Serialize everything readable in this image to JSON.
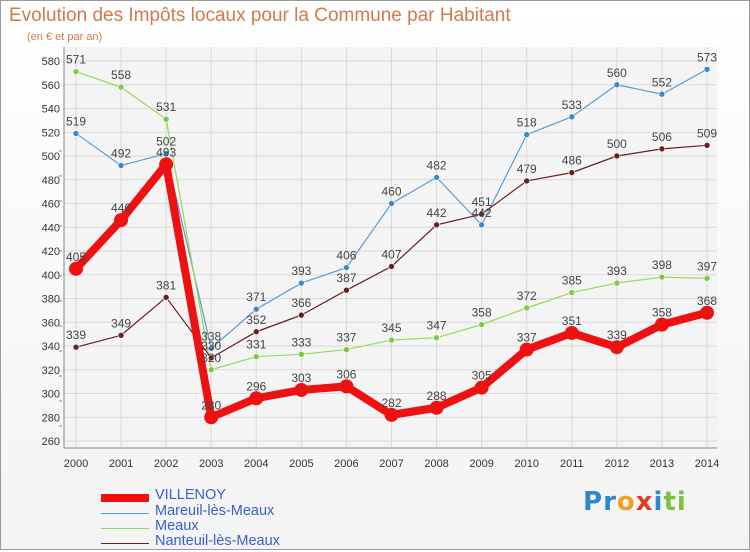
{
  "chart_data": {
    "type": "line",
    "title": "Evolution des Impôts locaux pour la Commune par Habitant",
    "subtitle": "(en € et par an)",
    "x": [
      "2000",
      "2001",
      "2002",
      "2003",
      "2004",
      "2005",
      "2006",
      "2007",
      "2008",
      "2009",
      "2010",
      "2011",
      "2012",
      "2013",
      "2014"
    ],
    "ylim": [
      260,
      580
    ],
    "yticks": [
      260,
      280,
      300,
      320,
      340,
      360,
      380,
      400,
      420,
      440,
      460,
      480,
      500,
      520,
      540,
      560,
      580
    ],
    "grid": true,
    "series": [
      {
        "name": "VILLENOY",
        "color": "#ee1111",
        "values": [
          405,
          446,
          493,
          280,
          296,
          303,
          306,
          282,
          288,
          305,
          337,
          351,
          339,
          358,
          368
        ]
      },
      {
        "name": "Mareuil-lès-Meaux",
        "color": "#5a9bd5",
        "values": [
          519,
          492,
          502,
          338,
          371,
          393,
          406,
          460,
          482,
          442,
          518,
          533,
          560,
          552,
          573
        ]
      },
      {
        "name": "Meaux",
        "color": "#98d65a",
        "values": [
          571,
          558,
          531,
          320,
          331,
          333,
          337,
          345,
          347,
          358,
          372,
          385,
          393,
          398,
          397
        ]
      },
      {
        "name": "Nanteuil-lès-Meaux",
        "color": "#6b2020",
        "values": [
          339,
          349,
          381,
          330,
          352,
          366,
          387,
          407,
          442,
          451,
          479,
          486,
          500,
          506,
          509
        ]
      }
    ]
  },
  "legend": {
    "items": [
      "VILLENOY",
      "Mareuil-lès-Meaux",
      "Meaux",
      "Nanteuil-lès-Meaux"
    ]
  },
  "logo": {
    "letters": [
      "P",
      "r",
      "o",
      "x",
      "i",
      "t",
      "i"
    ],
    "colors": [
      "#2e87c8",
      "#2e87c8",
      "#f0a020",
      "#e03c28",
      "#2e87c8",
      "#7cc242",
      "#7cc242"
    ]
  }
}
